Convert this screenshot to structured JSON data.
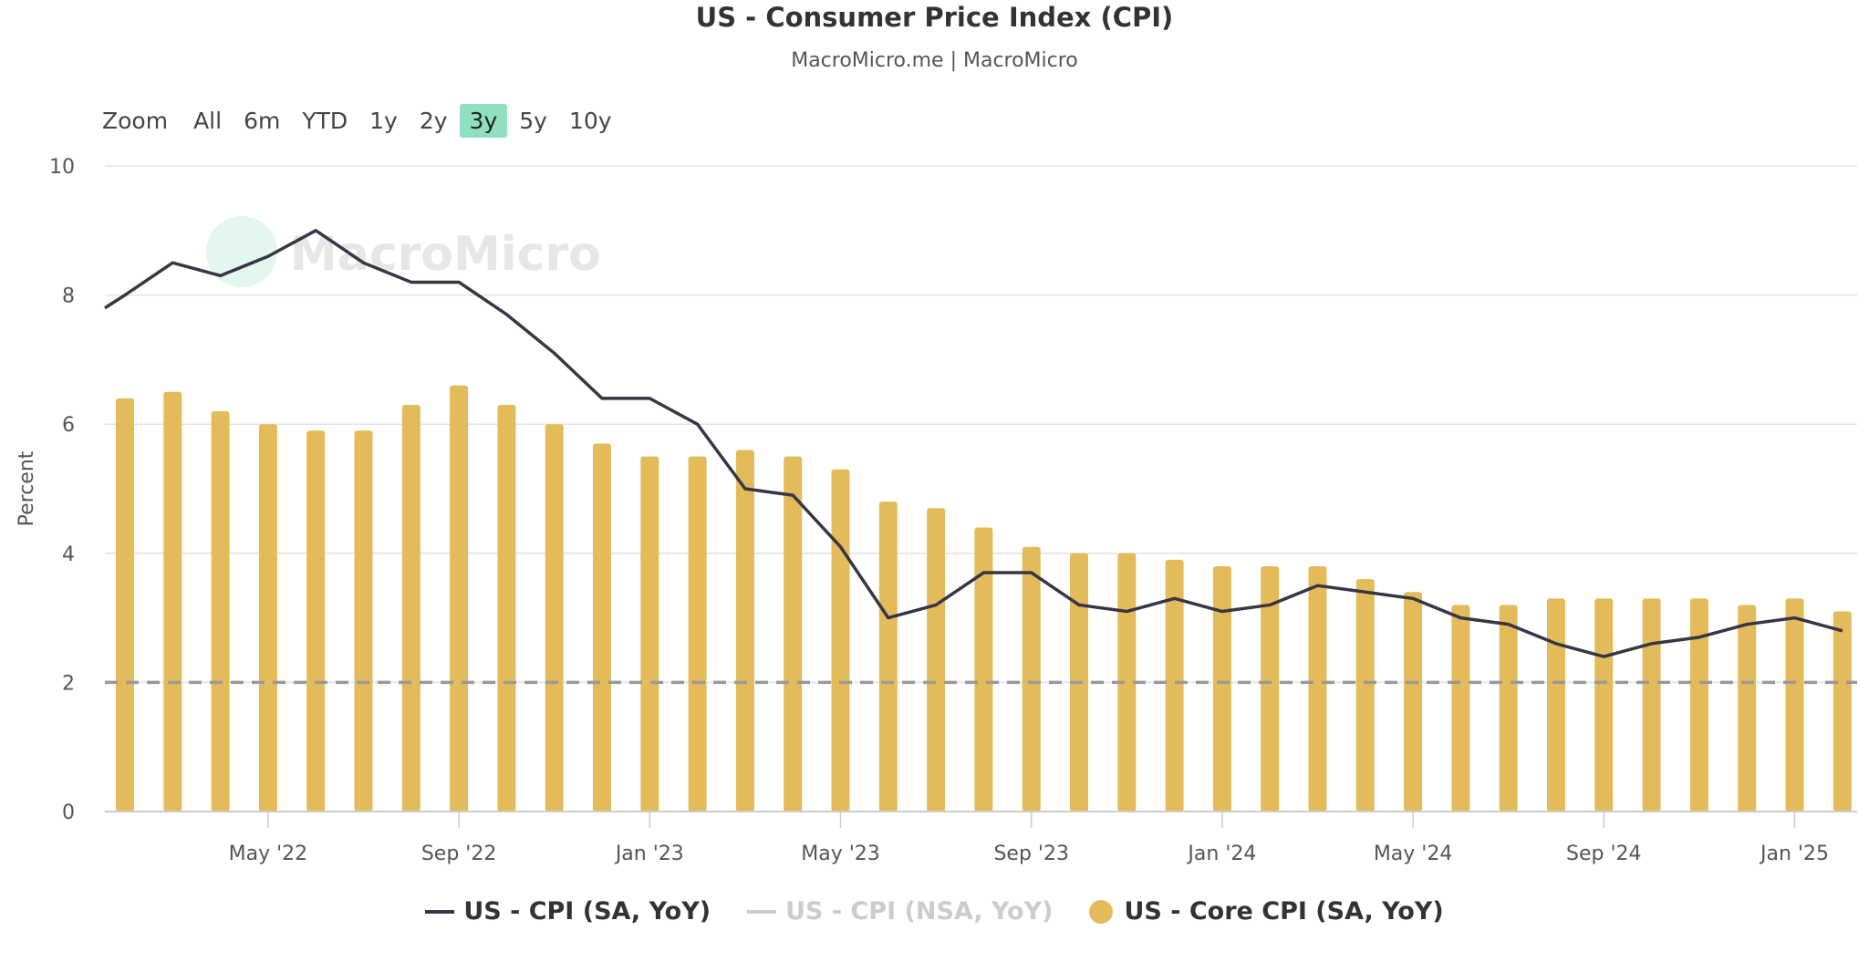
{
  "header": {
    "title": "US - Consumer Price Index (CPI)",
    "subtitle": "MacroMicro.me | MacroMicro"
  },
  "zoom": {
    "label": "Zoom",
    "options": [
      "All",
      "6m",
      "YTD",
      "1y",
      "2y",
      "3y",
      "5y",
      "10y"
    ],
    "active": "3y"
  },
  "watermark": "MacroMicro",
  "legend": [
    {
      "label": "US - CPI (SA, YoY)",
      "color": "#363645",
      "enabled": true
    },
    {
      "label": "US - CPI (NSA, YoY)",
      "color": "#cccccc",
      "enabled": false
    },
    {
      "label": "US - Core CPI (SA, YoY)",
      "color": "#e3bb5a",
      "enabled": true
    }
  ],
  "chart_data": {
    "type": "bar+line",
    "title": "US - Consumer Price Index (CPI)",
    "ylabel": "Percent",
    "ylim": [
      0,
      10
    ],
    "yticks": [
      0,
      2,
      4,
      6,
      8,
      10
    ],
    "xticks": [
      "May '22",
      "Sep '22",
      "Jan '23",
      "May '23",
      "Sep '23",
      "Jan '24",
      "May '24",
      "Sep '24",
      "Jan '25"
    ],
    "reference_line": {
      "value": 2,
      "style": "dashed",
      "color": "#999999"
    },
    "grid": true,
    "legend_position": "bottom",
    "x": [
      "2022-02",
      "2022-03",
      "2022-04",
      "2022-05",
      "2022-06",
      "2022-07",
      "2022-08",
      "2022-09",
      "2022-10",
      "2022-11",
      "2022-12",
      "2023-01",
      "2023-02",
      "2023-03",
      "2023-04",
      "2023-05",
      "2023-06",
      "2023-07",
      "2023-08",
      "2023-09",
      "2023-10",
      "2023-11",
      "2023-12",
      "2024-01",
      "2024-02",
      "2024-03",
      "2024-04",
      "2024-05",
      "2024-06",
      "2024-07",
      "2024-08",
      "2024-09",
      "2024-10",
      "2024-11",
      "2024-12",
      "2025-01",
      "2025-02"
    ],
    "series": [
      {
        "name": "US - CPI (SA, YoY)",
        "type": "line",
        "color": "#363645",
        "values": [
          8.0,
          8.5,
          8.3,
          8.6,
          9.0,
          8.5,
          8.2,
          8.2,
          7.7,
          7.1,
          6.4,
          6.4,
          6.0,
          5.0,
          4.9,
          4.1,
          3.0,
          3.2,
          3.7,
          3.7,
          3.2,
          3.1,
          3.3,
          3.1,
          3.2,
          3.5,
          3.4,
          3.3,
          3.0,
          2.9,
          2.6,
          2.4,
          2.6,
          2.7,
          2.9,
          3.0,
          2.8
        ]
      },
      {
        "name": "US - Core CPI (SA, YoY)",
        "type": "bar",
        "color": "#e3bb5a",
        "values": [
          6.4,
          6.5,
          6.2,
          6.0,
          5.9,
          5.9,
          6.3,
          6.6,
          6.3,
          6.0,
          5.7,
          5.5,
          5.5,
          5.6,
          5.5,
          5.3,
          4.8,
          4.7,
          4.4,
          4.1,
          4.0,
          4.0,
          3.9,
          3.8,
          3.8,
          3.8,
          3.6,
          3.4,
          3.2,
          3.2,
          3.3,
          3.3,
          3.3,
          3.3,
          3.2,
          3.3,
          3.1
        ]
      }
    ]
  }
}
